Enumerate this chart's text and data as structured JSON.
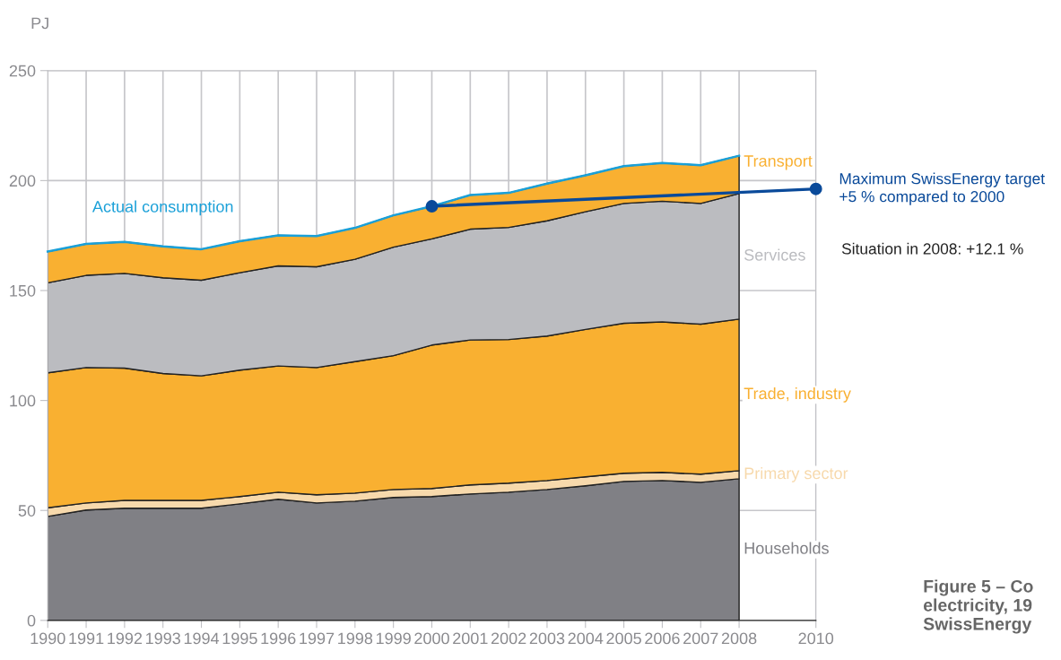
{
  "chart_data": {
    "type": "area",
    "stacked": true,
    "ylabel": "PJ",
    "x": [
      1990,
      1991,
      1992,
      1993,
      1994,
      1995,
      1996,
      1997,
      1998,
      1999,
      2000,
      2001,
      2002,
      2003,
      2004,
      2005,
      2006,
      2007,
      2008
    ],
    "xlim": [
      1990,
      2010
    ],
    "xticks": [
      1990,
      1991,
      1992,
      1993,
      1994,
      1995,
      1996,
      1997,
      1998,
      1999,
      2000,
      2001,
      2002,
      2003,
      2004,
      2005,
      2006,
      2007,
      2008,
      2010
    ],
    "ylim": [
      0,
      250
    ],
    "yticks": [
      0,
      50,
      100,
      150,
      200,
      250
    ],
    "grid": true,
    "legend": false,
    "series": [
      {
        "name": "Households",
        "color": "#808085",
        "values": [
          47.3,
          50.2,
          51.0,
          51.0,
          51.0,
          53.0,
          55.1,
          53.4,
          54.2,
          55.9,
          56.3,
          57.5,
          58.3,
          59.5,
          61.2,
          63.2,
          63.6,
          62.8,
          64.4
        ]
      },
      {
        "name": "Primary sector",
        "color": "#f7d9ac",
        "values": [
          3.9,
          3.2,
          3.6,
          3.6,
          3.6,
          3.3,
          3.2,
          3.7,
          3.7,
          3.6,
          3.7,
          4.1,
          4.1,
          4.1,
          4.1,
          3.7,
          3.7,
          3.7,
          3.7
        ]
      },
      {
        "name": "Trade, industry",
        "color": "#f9b031",
        "values": [
          61.4,
          61.6,
          60.1,
          57.7,
          56.6,
          57.5,
          57.4,
          57.9,
          59.8,
          60.9,
          65.2,
          65.9,
          65.3,
          65.7,
          67.0,
          68.2,
          68.4,
          68.2,
          68.9
        ]
      },
      {
        "name": "Services",
        "color": "#bbbcc0",
        "values": [
          40.9,
          41.9,
          43.1,
          43.5,
          43.5,
          44.3,
          45.5,
          45.8,
          46.5,
          49.3,
          48.3,
          50.4,
          51.0,
          52.4,
          53.5,
          54.5,
          54.9,
          54.9,
          57.1
        ]
      },
      {
        "name": "Transport",
        "color": "#f9b031",
        "values": [
          14.2,
          14.3,
          14.3,
          14.3,
          14.1,
          14.3,
          13.9,
          14.0,
          14.3,
          14.5,
          14.8,
          15.5,
          15.7,
          16.9,
          16.6,
          17.0,
          17.4,
          17.4,
          17.2
        ]
      },
      {
        "name": "Actual consumption",
        "type": "line",
        "color": "#1aa0d8",
        "values": [
          167.7,
          171.2,
          172.1,
          170.1,
          168.8,
          172.4,
          175.1,
          174.8,
          178.5,
          184.2,
          188.3,
          193.4,
          194.4,
          198.6,
          202.4,
          206.6,
          208.0,
          207.0,
          211.3
        ]
      },
      {
        "name": "Maximum SwissEnergy target\n+5 % compared to 2000",
        "type": "line",
        "color": "#0a4a9a",
        "marker": "circle",
        "x": [
          2000,
          2010
        ],
        "values": [
          188.3,
          196.2
        ]
      }
    ],
    "annotations": [
      "Situation in 2008: +12.1 %",
      "Figure 5 – Co\nelectricity, 19\nSwissEnergy"
    ]
  }
}
